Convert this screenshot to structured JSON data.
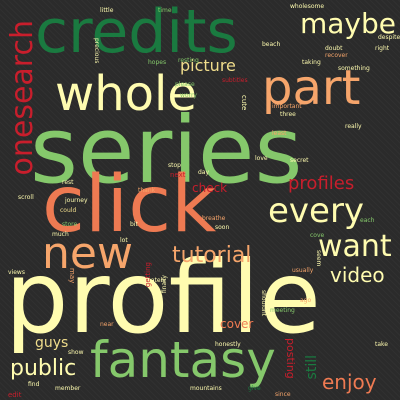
{
  "background": "#2b2b2b",
  "palette": [
    "#1a7a40",
    "#85c86b",
    "#fffcb0",
    "#f6a56b",
    "#ee7a52",
    "#c81e2c",
    "#f0dd8c"
  ],
  "words": [
    {
      "text": "profile",
      "color": "#fffcb0"
    },
    {
      "text": "series",
      "color": "#85c86b"
    },
    {
      "text": "click",
      "color": "#ee7a52"
    },
    {
      "text": "credits",
      "color": "#1a7a40"
    },
    {
      "text": "whole",
      "color": "#fffcb0"
    },
    {
      "text": "fantasy",
      "color": "#85c86b"
    },
    {
      "text": "part",
      "color": "#f6a56b"
    },
    {
      "text": "new",
      "color": "#f6a56b"
    },
    {
      "text": "every",
      "color": "#fffcb0"
    },
    {
      "text": "want",
      "color": "#fffcb0"
    },
    {
      "text": "maybe",
      "color": "#fffcb0"
    },
    {
      "text": "onesearch",
      "color": "#c81e2c"
    },
    {
      "text": "tutorial",
      "color": "#f6a56b"
    },
    {
      "text": "profiles",
      "color": "#c81e2c"
    },
    {
      "text": "video",
      "color": "#fffcb0"
    },
    {
      "text": "public",
      "color": "#fffcb0"
    },
    {
      "text": "enjoy",
      "color": "#ee7a52"
    },
    {
      "text": "picture",
      "color": "#f0dd8c"
    },
    {
      "text": "guys",
      "color": "#f0dd8c"
    },
    {
      "text": "check",
      "color": "#c81e2c"
    },
    {
      "text": "cover",
      "color": "#ee7a52"
    },
    {
      "text": "still",
      "color": "#1a7a40"
    },
    {
      "text": "posting",
      "color": "#c81e2c"
    },
    {
      "text": "hopes",
      "color": "#85c86b"
    },
    {
      "text": "resting",
      "color": "#85c86b"
    },
    {
      "text": "please",
      "color": "#85c86b"
    },
    {
      "text": "worry",
      "color": "#85c86b"
    },
    {
      "text": "important",
      "color": "#f6a56b"
    },
    {
      "text": "subtitles",
      "color": "#c81e2c"
    },
    {
      "text": "taking",
      "color": "#fffcb0"
    },
    {
      "text": "three",
      "color": "#fffcb0"
    },
    {
      "text": "least",
      "color": "#f6a56b"
    },
    {
      "text": "cute",
      "color": "#fffcb0"
    },
    {
      "text": "stop",
      "color": "#fffcb0"
    },
    {
      "text": "day",
      "color": "#fffcb0"
    },
    {
      "text": "next",
      "color": "#c81e2c"
    },
    {
      "text": "thank",
      "color": "#f6a56b"
    },
    {
      "text": "breathe",
      "color": "#f6a56b"
    },
    {
      "text": "soon",
      "color": "#fffcb0"
    },
    {
      "text": "secret",
      "color": "#fffcb0"
    },
    {
      "text": "love",
      "color": "#fffcb0"
    },
    {
      "text": "rest",
      "color": "#fffcb0"
    },
    {
      "text": "journey",
      "color": "#fffcb0"
    },
    {
      "text": "scroll",
      "color": "#fffcb0"
    },
    {
      "text": "could",
      "color": "#f0dd8c"
    },
    {
      "text": "store",
      "color": "#85c86b"
    },
    {
      "text": "much",
      "color": "#fffcb0"
    },
    {
      "text": "bit",
      "color": "#fffcb0"
    },
    {
      "text": "lot",
      "color": "#fffcb0"
    },
    {
      "text": "views",
      "color": "#fffcb0"
    },
    {
      "text": "may",
      "color": "#f6a56b"
    },
    {
      "text": "unfortunately",
      "color": "#fffcb0"
    },
    {
      "text": "getting",
      "color": "#c81e2c"
    },
    {
      "text": "finally",
      "color": "#fffcb0"
    },
    {
      "text": "usually",
      "color": "#f6a56b"
    },
    {
      "text": "near",
      "color": "#f6a56b"
    },
    {
      "text": "honestly",
      "color": "#fffcb0"
    },
    {
      "text": "show",
      "color": "#fffcb0"
    },
    {
      "text": "find",
      "color": "#fffcb0"
    },
    {
      "text": "edit",
      "color": "#c81e2c"
    },
    {
      "text": "member",
      "color": "#fffcb0"
    },
    {
      "text": "mountains",
      "color": "#fffcb0"
    },
    {
      "text": "give",
      "color": "#1a7a40"
    },
    {
      "text": "take",
      "color": "#fffcb0"
    },
    {
      "text": "little",
      "color": "#fffcb0"
    },
    {
      "text": "time",
      "color": "#85c86b"
    },
    {
      "text": "wholesome",
      "color": "#fffcb0"
    },
    {
      "text": "beach",
      "color": "#fffcb0"
    },
    {
      "text": "doubt",
      "color": "#fffcb0"
    },
    {
      "text": "recover",
      "color": "#f6a56b"
    },
    {
      "text": "despite",
      "color": "#fffcb0"
    },
    {
      "text": "right",
      "color": "#fffcb0"
    },
    {
      "text": "something",
      "color": "#fffcb0"
    },
    {
      "text": "really",
      "color": "#fffcb0"
    },
    {
      "text": "each",
      "color": "#85c86b"
    },
    {
      "text": "cove",
      "color": "#85c86b"
    },
    {
      "text": "seem",
      "color": "#fffcb0"
    },
    {
      "text": "precious",
      "color": "#fffcb0"
    },
    {
      "text": "meeting",
      "color": "#85c86b"
    },
    {
      "text": "ago",
      "color": "#f6a56b"
    },
    {
      "text": "shouldnt",
      "color": "#fffcb0"
    },
    {
      "text": "since",
      "color": "#f6a56b"
    }
  ]
}
